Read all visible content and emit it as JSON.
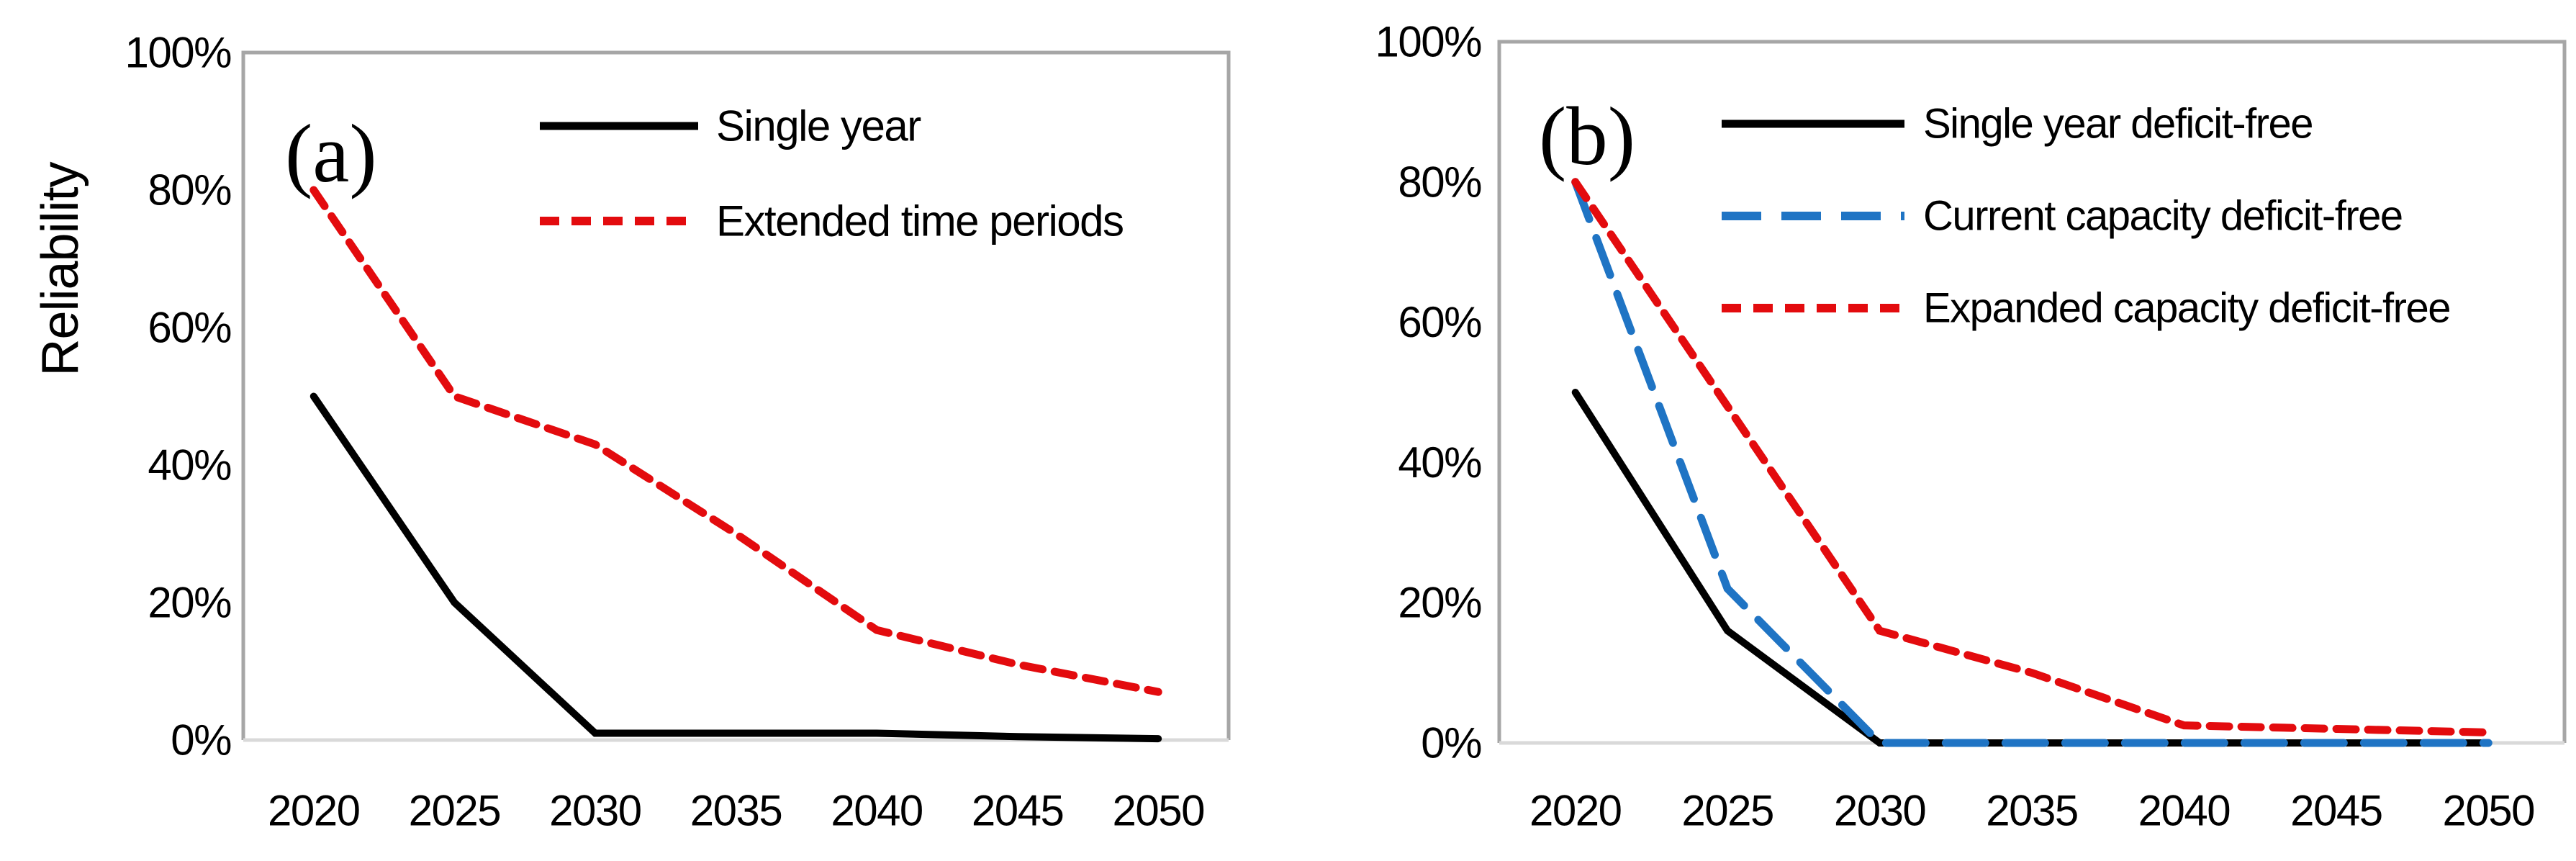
{
  "figure": {
    "background": "#ffffff",
    "text_color": "#000000",
    "plot_border_color": "#a6a6a6",
    "baseline_color": "#d9d9d9"
  },
  "chart_data": [
    {
      "type": "line",
      "panel_label": "(a)",
      "title": "",
      "xlabel": "",
      "ylabel": "Reliability",
      "ylim": [
        0,
        100
      ],
      "yticks": [
        0,
        20,
        40,
        60,
        80,
        100
      ],
      "ytick_labels": [
        "0%",
        "20%",
        "40%",
        "60%",
        "80%",
        "100%"
      ],
      "categories": [
        "2020",
        "2025",
        "2030",
        "2035",
        "2040",
        "2045",
        "2050"
      ],
      "grid": false,
      "legend_position": "top-inside",
      "series": [
        {
          "name": "Single year",
          "color": "#000000",
          "line_style": "solid",
          "values": [
            50,
            20,
            1,
            1,
            1,
            0.5,
            0.2
          ]
        },
        {
          "name": "Extended time periods",
          "color": "#e30b0e",
          "line_style": "short-dash",
          "values": [
            80,
            50,
            43,
            30,
            16,
            11,
            7
          ]
        }
      ]
    },
    {
      "type": "line",
      "panel_label": "(b)",
      "title": "",
      "xlabel": "",
      "ylabel": "",
      "ylim": [
        0,
        100
      ],
      "yticks": [
        0,
        20,
        40,
        60,
        80,
        100
      ],
      "ytick_labels": [
        "0%",
        "20%",
        "40%",
        "60%",
        "80%",
        "100%"
      ],
      "categories": [
        "2020",
        "2025",
        "2030",
        "2035",
        "2040",
        "2045",
        "2050"
      ],
      "grid": false,
      "legend_position": "top-inside",
      "series": [
        {
          "name": "Single year deficit-free",
          "color": "#000000",
          "line_style": "solid",
          "values": [
            50,
            16,
            0,
            0,
            0,
            0,
            0
          ]
        },
        {
          "name": "Current capacity deficit-free",
          "color": "#1f74c4",
          "line_style": "long-dash",
          "values": [
            80,
            22,
            0,
            0,
            0,
            0,
            0
          ]
        },
        {
          "name": "Expanded capacity deficit-free",
          "color": "#e30b0e",
          "line_style": "short-dash",
          "values": [
            80,
            48,
            16,
            10,
            2.5,
            2,
            1.5
          ]
        }
      ]
    }
  ]
}
